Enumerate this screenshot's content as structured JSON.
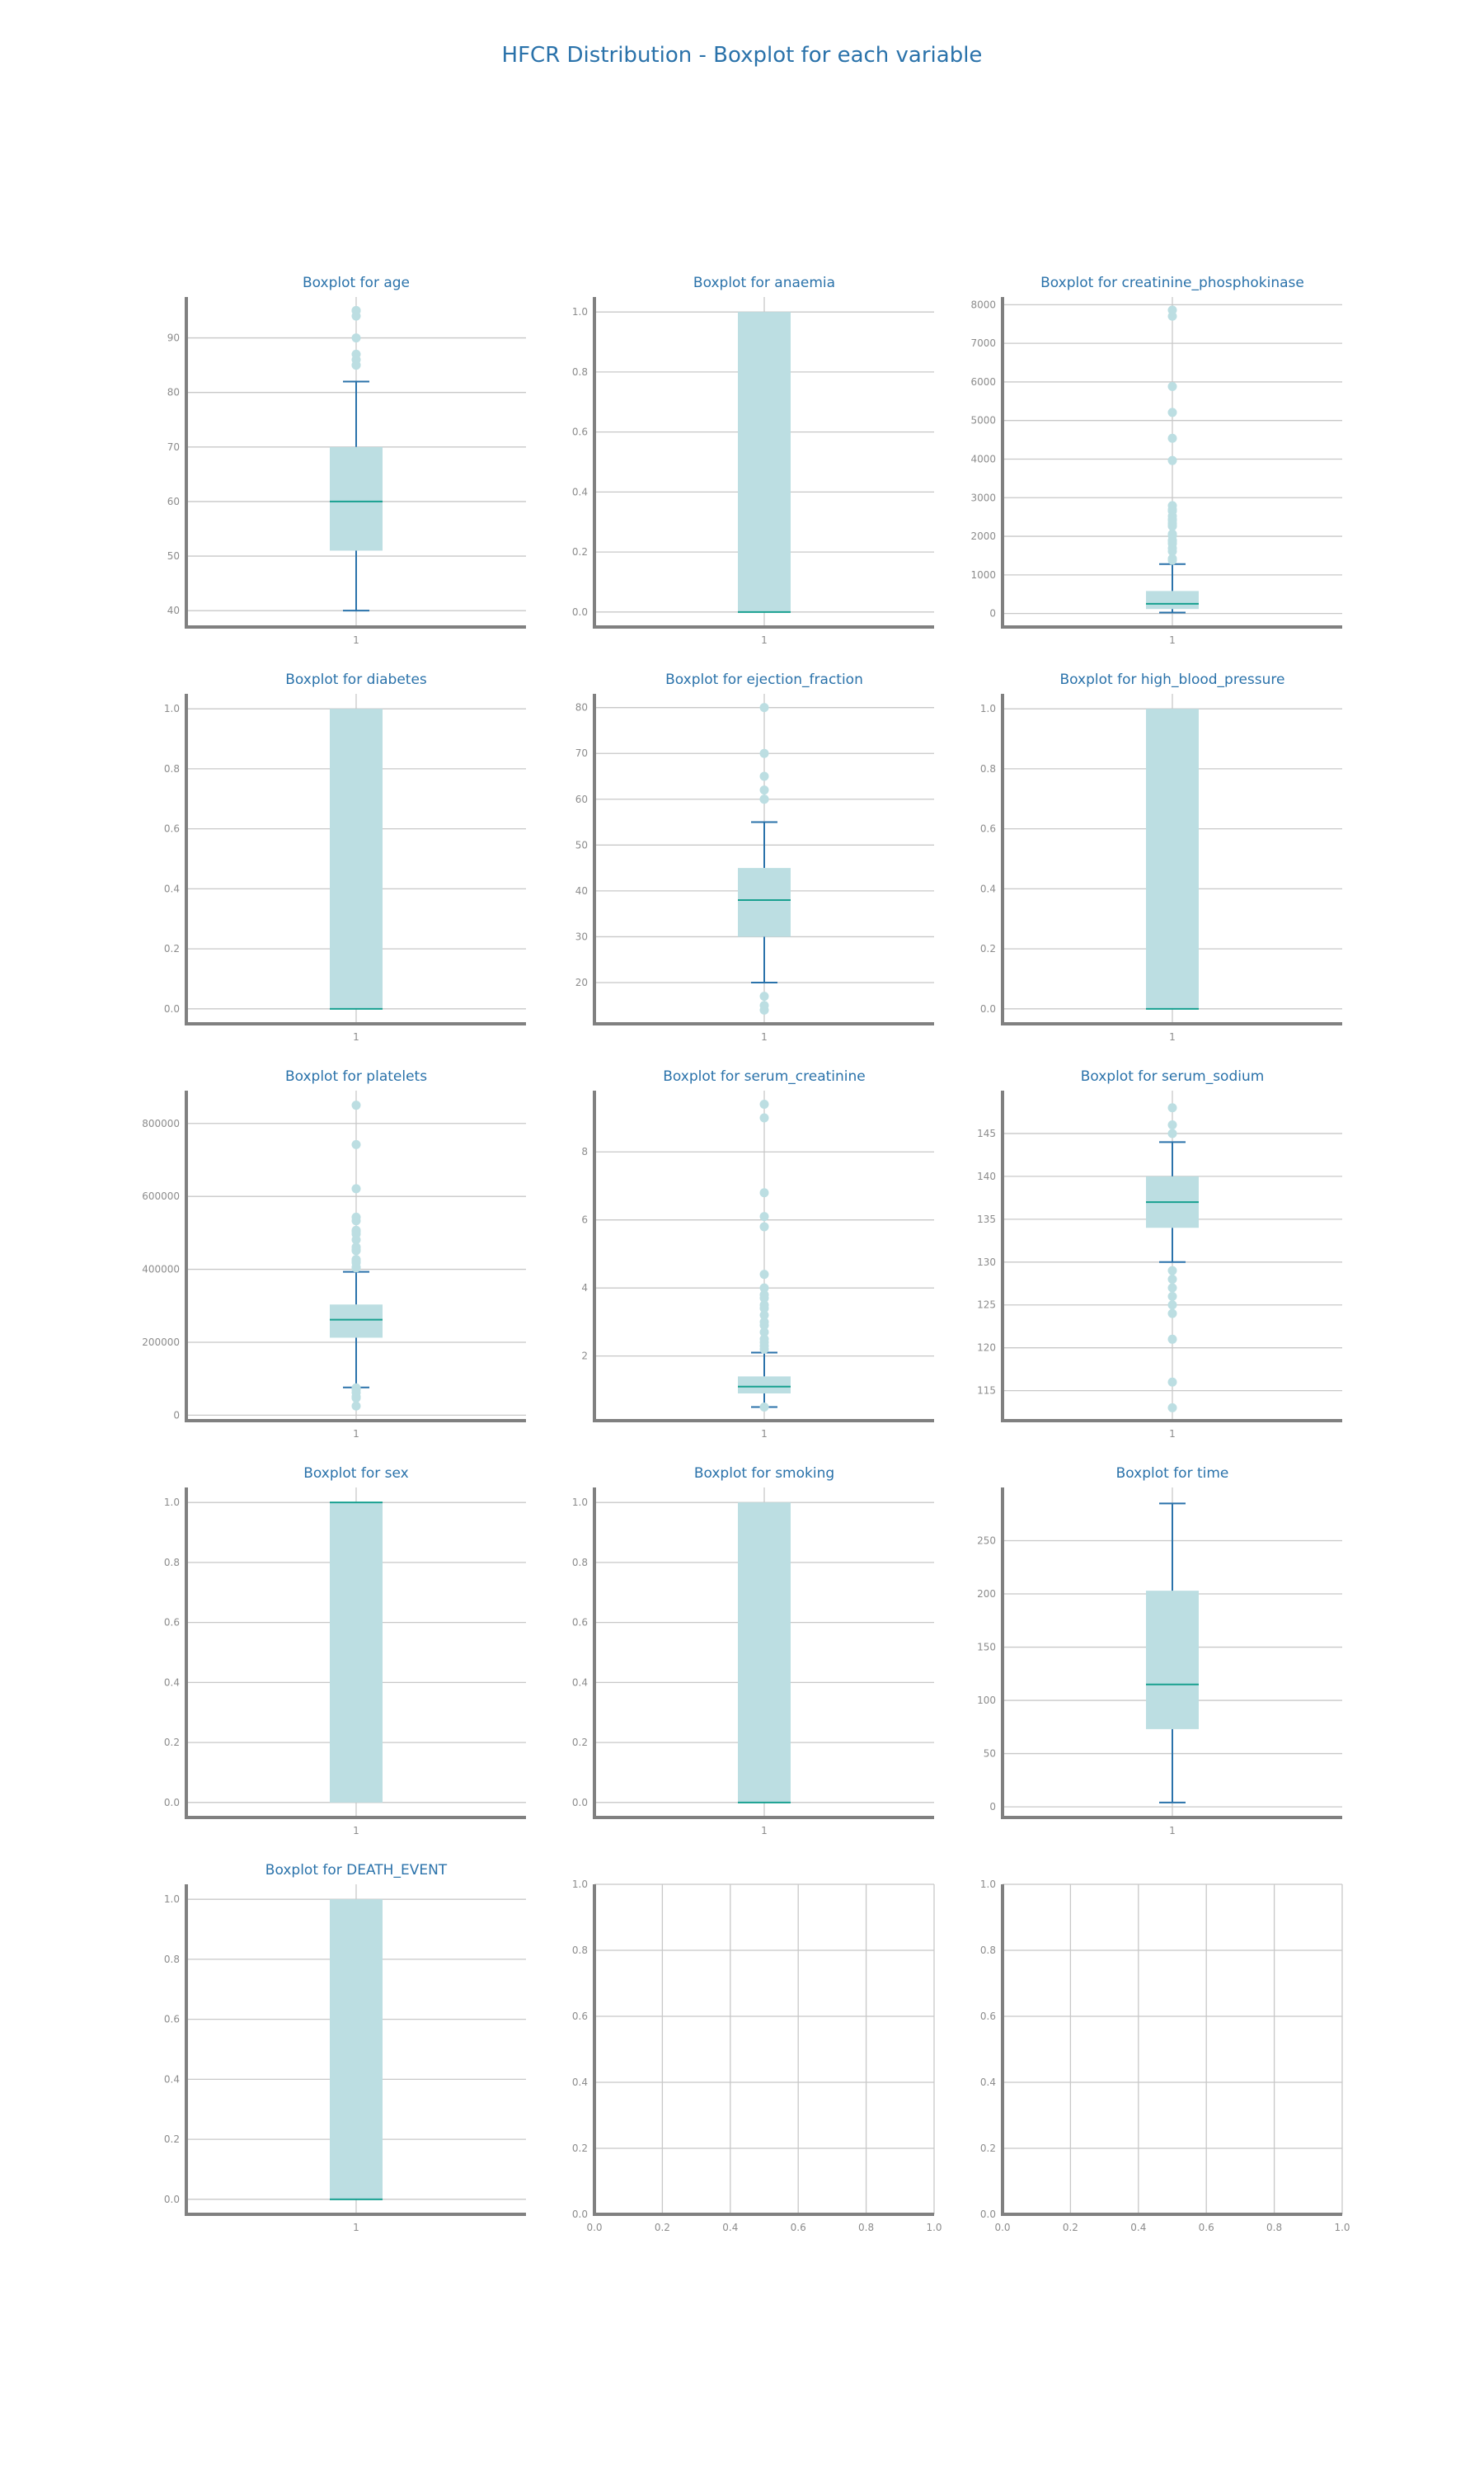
{
  "figure": {
    "title": "HFCR Distribution - Boxplot for each variable",
    "colors": {
      "title": "#2a72aa",
      "axis": "#808080",
      "grid": "#c8c8c8",
      "tick": "#8c8c8c",
      "box": "#bcdee2",
      "median": "#18a090",
      "whisker": "#2a72aa",
      "flier": "#bcdee2"
    }
  },
  "chart_data": [
    {
      "type": "box",
      "title": "Boxplot for age",
      "xticks": [
        "1"
      ],
      "ylim": [
        37,
        97.5
      ],
      "yticks": [
        40,
        50,
        60,
        70,
        80,
        90
      ],
      "yticklabels": [
        "40",
        "50",
        "60",
        "70",
        "80",
        "90"
      ],
      "q1": 51,
      "median": 60,
      "q3": 70,
      "whisker_low": 40,
      "whisker_high": 82,
      "fliers": [
        85,
        85,
        86,
        87,
        90,
        94,
        95,
        95,
        95
      ]
    },
    {
      "type": "box",
      "title": "Boxplot for anaemia",
      "xticks": [
        "1"
      ],
      "ylim": [
        -0.05,
        1.05
      ],
      "yticks": [
        0,
        0.2,
        0.4,
        0.6,
        0.8,
        1.0
      ],
      "yticklabels": [
        "0.0",
        "0.2",
        "0.4",
        "0.6",
        "0.8",
        "1.0"
      ],
      "q1": 0,
      "median": 0,
      "q3": 1,
      "whisker_low": 0,
      "whisker_high": 1,
      "fliers": []
    },
    {
      "type": "box",
      "title": "Boxplot for creatinine_phosphokinase",
      "xticks": [
        "1"
      ],
      "ylim": [
        -350,
        8200
      ],
      "yticks": [
        0,
        1000,
        2000,
        3000,
        4000,
        5000,
        6000,
        7000,
        8000
      ],
      "yticklabels": [
        "0",
        "1000",
        "2000",
        "3000",
        "4000",
        "5000",
        "6000",
        "7000",
        "8000"
      ],
      "q1": 116,
      "median": 250,
      "q3": 582,
      "whisker_low": 23,
      "whisker_high": 1280,
      "fliers": [
        1380,
        1420,
        1610,
        1690,
        1810,
        1876,
        1896,
        2017,
        2060,
        2261,
        2281,
        2334,
        2413,
        2442,
        2522,
        2656,
        2695,
        2794,
        3964,
        4540,
        5209,
        5882,
        7702,
        7861
      ]
    },
    {
      "type": "box",
      "title": "Boxplot for diabetes",
      "xticks": [
        "1"
      ],
      "ylim": [
        -0.05,
        1.05
      ],
      "yticks": [
        0,
        0.2,
        0.4,
        0.6,
        0.8,
        1.0
      ],
      "yticklabels": [
        "0.0",
        "0.2",
        "0.4",
        "0.6",
        "0.8",
        "1.0"
      ],
      "q1": 0,
      "median": 0,
      "q3": 1,
      "whisker_low": 0,
      "whisker_high": 1,
      "fliers": []
    },
    {
      "type": "box",
      "title": "Boxplot for ejection_fraction",
      "xticks": [
        "1"
      ],
      "ylim": [
        11,
        83
      ],
      "yticks": [
        20,
        30,
        40,
        50,
        60,
        70,
        80
      ],
      "yticklabels": [
        "20",
        "30",
        "40",
        "50",
        "60",
        "70",
        "80"
      ],
      "q1": 30,
      "median": 38,
      "q3": 45,
      "whisker_low": 20,
      "whisker_high": 55,
      "fliers": [
        14,
        15,
        17,
        60,
        60,
        62,
        65,
        70,
        80
      ]
    },
    {
      "type": "box",
      "title": "Boxplot for high_blood_pressure",
      "xticks": [
        "1"
      ],
      "ylim": [
        -0.05,
        1.05
      ],
      "yticks": [
        0,
        0.2,
        0.4,
        0.6,
        0.8,
        1.0
      ],
      "yticklabels": [
        "0.0",
        "0.2",
        "0.4",
        "0.6",
        "0.8",
        "1.0"
      ],
      "q1": 0,
      "median": 0,
      "q3": 1,
      "whisker_low": 0,
      "whisker_high": 1,
      "fliers": []
    },
    {
      "type": "box",
      "title": "Boxplot for platelets",
      "xticks": [
        "1"
      ],
      "ylim": [
        -15000,
        890000
      ],
      "yticks": [
        0,
        200000,
        400000,
        600000,
        800000
      ],
      "yticklabels": [
        "0",
        "200000",
        "400000",
        "600000",
        "800000"
      ],
      "q1": 212500,
      "median": 262000,
      "q3": 303500,
      "whisker_low": 76000,
      "whisker_high": 393000,
      "fliers": [
        25100,
        47000,
        51000,
        62000,
        70000,
        73000,
        75000,
        404000,
        406000,
        418000,
        422000,
        427000,
        451000,
        454000,
        461000,
        481000,
        497000,
        504000,
        507000,
        533000,
        543000,
        621000,
        742000,
        850000
      ]
    },
    {
      "type": "box",
      "title": "Boxplot for serum_creatinine",
      "xticks": [
        "1"
      ],
      "ylim": [
        0.1,
        9.8
      ],
      "yticks": [
        2,
        4,
        6,
        8
      ],
      "yticklabels": [
        "2",
        "4",
        "6",
        "8"
      ],
      "q1": 0.9,
      "median": 1.1,
      "q3": 1.4,
      "whisker_low": 0.5,
      "whisker_high": 2.1,
      "fliers": [
        0.5,
        2.2,
        2.3,
        2.4,
        2.5,
        2.7,
        2.9,
        3.0,
        3.2,
        3.4,
        3.5,
        3.7,
        3.8,
        4.0,
        4.4,
        5.8,
        6.1,
        6.8,
        9.0,
        9.4
      ]
    },
    {
      "type": "box",
      "title": "Boxplot for serum_sodium",
      "xticks": [
        "1"
      ],
      "ylim": [
        111.5,
        150
      ],
      "yticks": [
        115,
        120,
        125,
        130,
        135,
        140,
        145
      ],
      "yticklabels": [
        "115",
        "120",
        "125",
        "130",
        "135",
        "140",
        "145"
      ],
      "q1": 134,
      "median": 137,
      "q3": 140,
      "whisker_low": 130,
      "whisker_high": 144,
      "fliers": [
        113,
        116,
        121,
        124,
        125,
        126,
        127,
        128,
        129,
        145,
        146,
        148
      ]
    },
    {
      "type": "box",
      "title": "Boxplot for sex",
      "xticks": [
        "1"
      ],
      "ylim": [
        -0.05,
        1.05
      ],
      "yticks": [
        0,
        0.2,
        0.4,
        0.6,
        0.8,
        1.0
      ],
      "yticklabels": [
        "0.0",
        "0.2",
        "0.4",
        "0.6",
        "0.8",
        "1.0"
      ],
      "q1": 0,
      "median": 1,
      "q3": 1,
      "whisker_low": 0,
      "whisker_high": 1,
      "fliers": []
    },
    {
      "type": "box",
      "title": "Boxplot for smoking",
      "xticks": [
        "1"
      ],
      "ylim": [
        -0.05,
        1.05
      ],
      "yticks": [
        0,
        0.2,
        0.4,
        0.6,
        0.8,
        1.0
      ],
      "yticklabels": [
        "0.0",
        "0.2",
        "0.4",
        "0.6",
        "0.8",
        "1.0"
      ],
      "q1": 0,
      "median": 0,
      "q3": 1,
      "whisker_low": 0,
      "whisker_high": 1,
      "fliers": []
    },
    {
      "type": "box",
      "title": "Boxplot for time",
      "xticks": [
        "1"
      ],
      "ylim": [
        -10,
        300
      ],
      "yticks": [
        0,
        50,
        100,
        150,
        200,
        250
      ],
      "yticklabels": [
        "0",
        "50",
        "100",
        "150",
        "200",
        "250"
      ],
      "q1": 73,
      "median": 115,
      "q3": 203,
      "whisker_low": 4,
      "whisker_high": 285,
      "fliers": []
    },
    {
      "type": "box",
      "title": "Boxplot for DEATH_EVENT",
      "xticks": [
        "1"
      ],
      "ylim": [
        -0.05,
        1.05
      ],
      "yticks": [
        0,
        0.2,
        0.4,
        0.6,
        0.8,
        1.0
      ],
      "yticklabels": [
        "0.0",
        "0.2",
        "0.4",
        "0.6",
        "0.8",
        "1.0"
      ],
      "q1": 0,
      "median": 0,
      "q3": 1,
      "whisker_low": 0,
      "whisker_high": 1,
      "fliers": []
    },
    {
      "type": "empty",
      "title": "",
      "xlim": [
        0,
        1
      ],
      "ylim": [
        0,
        1
      ],
      "xticks": [
        0,
        0.2,
        0.4,
        0.6,
        0.8,
        1.0
      ],
      "xticklabels": [
        "0.0",
        "0.2",
        "0.4",
        "0.6",
        "0.8",
        "1.0"
      ],
      "yticks": [
        0,
        0.2,
        0.4,
        0.6,
        0.8,
        1.0
      ],
      "yticklabels": [
        "0.0",
        "0.2",
        "0.4",
        "0.6",
        "0.8",
        "1.0"
      ]
    },
    {
      "type": "empty",
      "title": "",
      "xlim": [
        0,
        1
      ],
      "ylim": [
        0,
        1
      ],
      "xticks": [
        0,
        0.2,
        0.4,
        0.6,
        0.8,
        1.0
      ],
      "xticklabels": [
        "0.0",
        "0.2",
        "0.4",
        "0.6",
        "0.8",
        "1.0"
      ],
      "yticks": [
        0,
        0.2,
        0.4,
        0.6,
        0.8,
        1.0
      ],
      "yticklabels": [
        "0.0",
        "0.2",
        "0.4",
        "0.6",
        "0.8",
        "1.0"
      ]
    }
  ]
}
